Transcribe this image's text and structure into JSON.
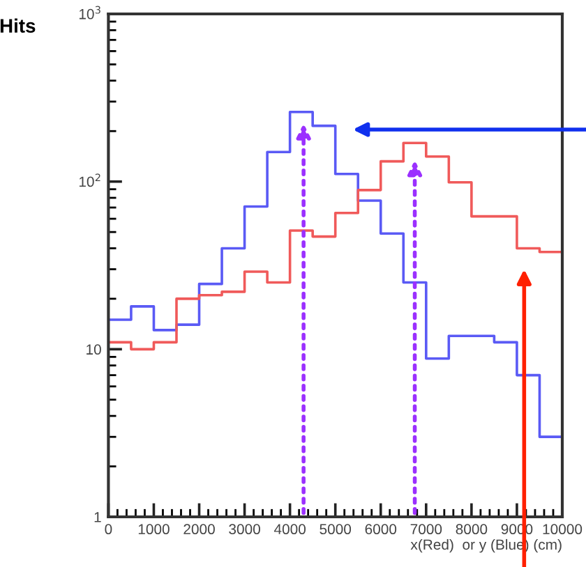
{
  "chart_data": {
    "type": "histogram",
    "ylabel": "Hits",
    "xlabel": "x(Red)  or y (Blue) (cm)",
    "bins": [
      0,
      500,
      1000,
      1500,
      2000,
      2500,
      3000,
      3500,
      4000,
      4500,
      5000,
      5500,
      6000,
      6500,
      7000,
      7500,
      8000,
      8500,
      9000,
      9500,
      10000
    ],
    "series": [
      {
        "color": "#5a5af5",
        "values": [
          15,
          18,
          13,
          14,
          24.5,
          40,
          71,
          150,
          260,
          215,
          111,
          77,
          49,
          25,
          8.8,
          12,
          12,
          11,
          7,
          3
        ]
      },
      {
        "color": "#f05a5a",
        "values": [
          11,
          10,
          11,
          20,
          21,
          22,
          29,
          25,
          51,
          47,
          65,
          89,
          132,
          170,
          141,
          99,
          62,
          62,
          40,
          38
        ]
      }
    ],
    "log": "y",
    "xlim": [
      0,
      10000
    ],
    "xticks": [
      0,
      1000,
      2000,
      3000,
      4000,
      5000,
      6000,
      7000,
      8000,
      9000,
      10000
    ],
    "ylim": [
      1,
      1000
    ],
    "yticks": [
      1,
      10,
      {
        "value": 100,
        "label": "10$^{2}$"
      },
      {
        "value": 1000,
        "label": "10$^{3}$"
      }
    ],
    "grid": false,
    "legend": false
  }
}
